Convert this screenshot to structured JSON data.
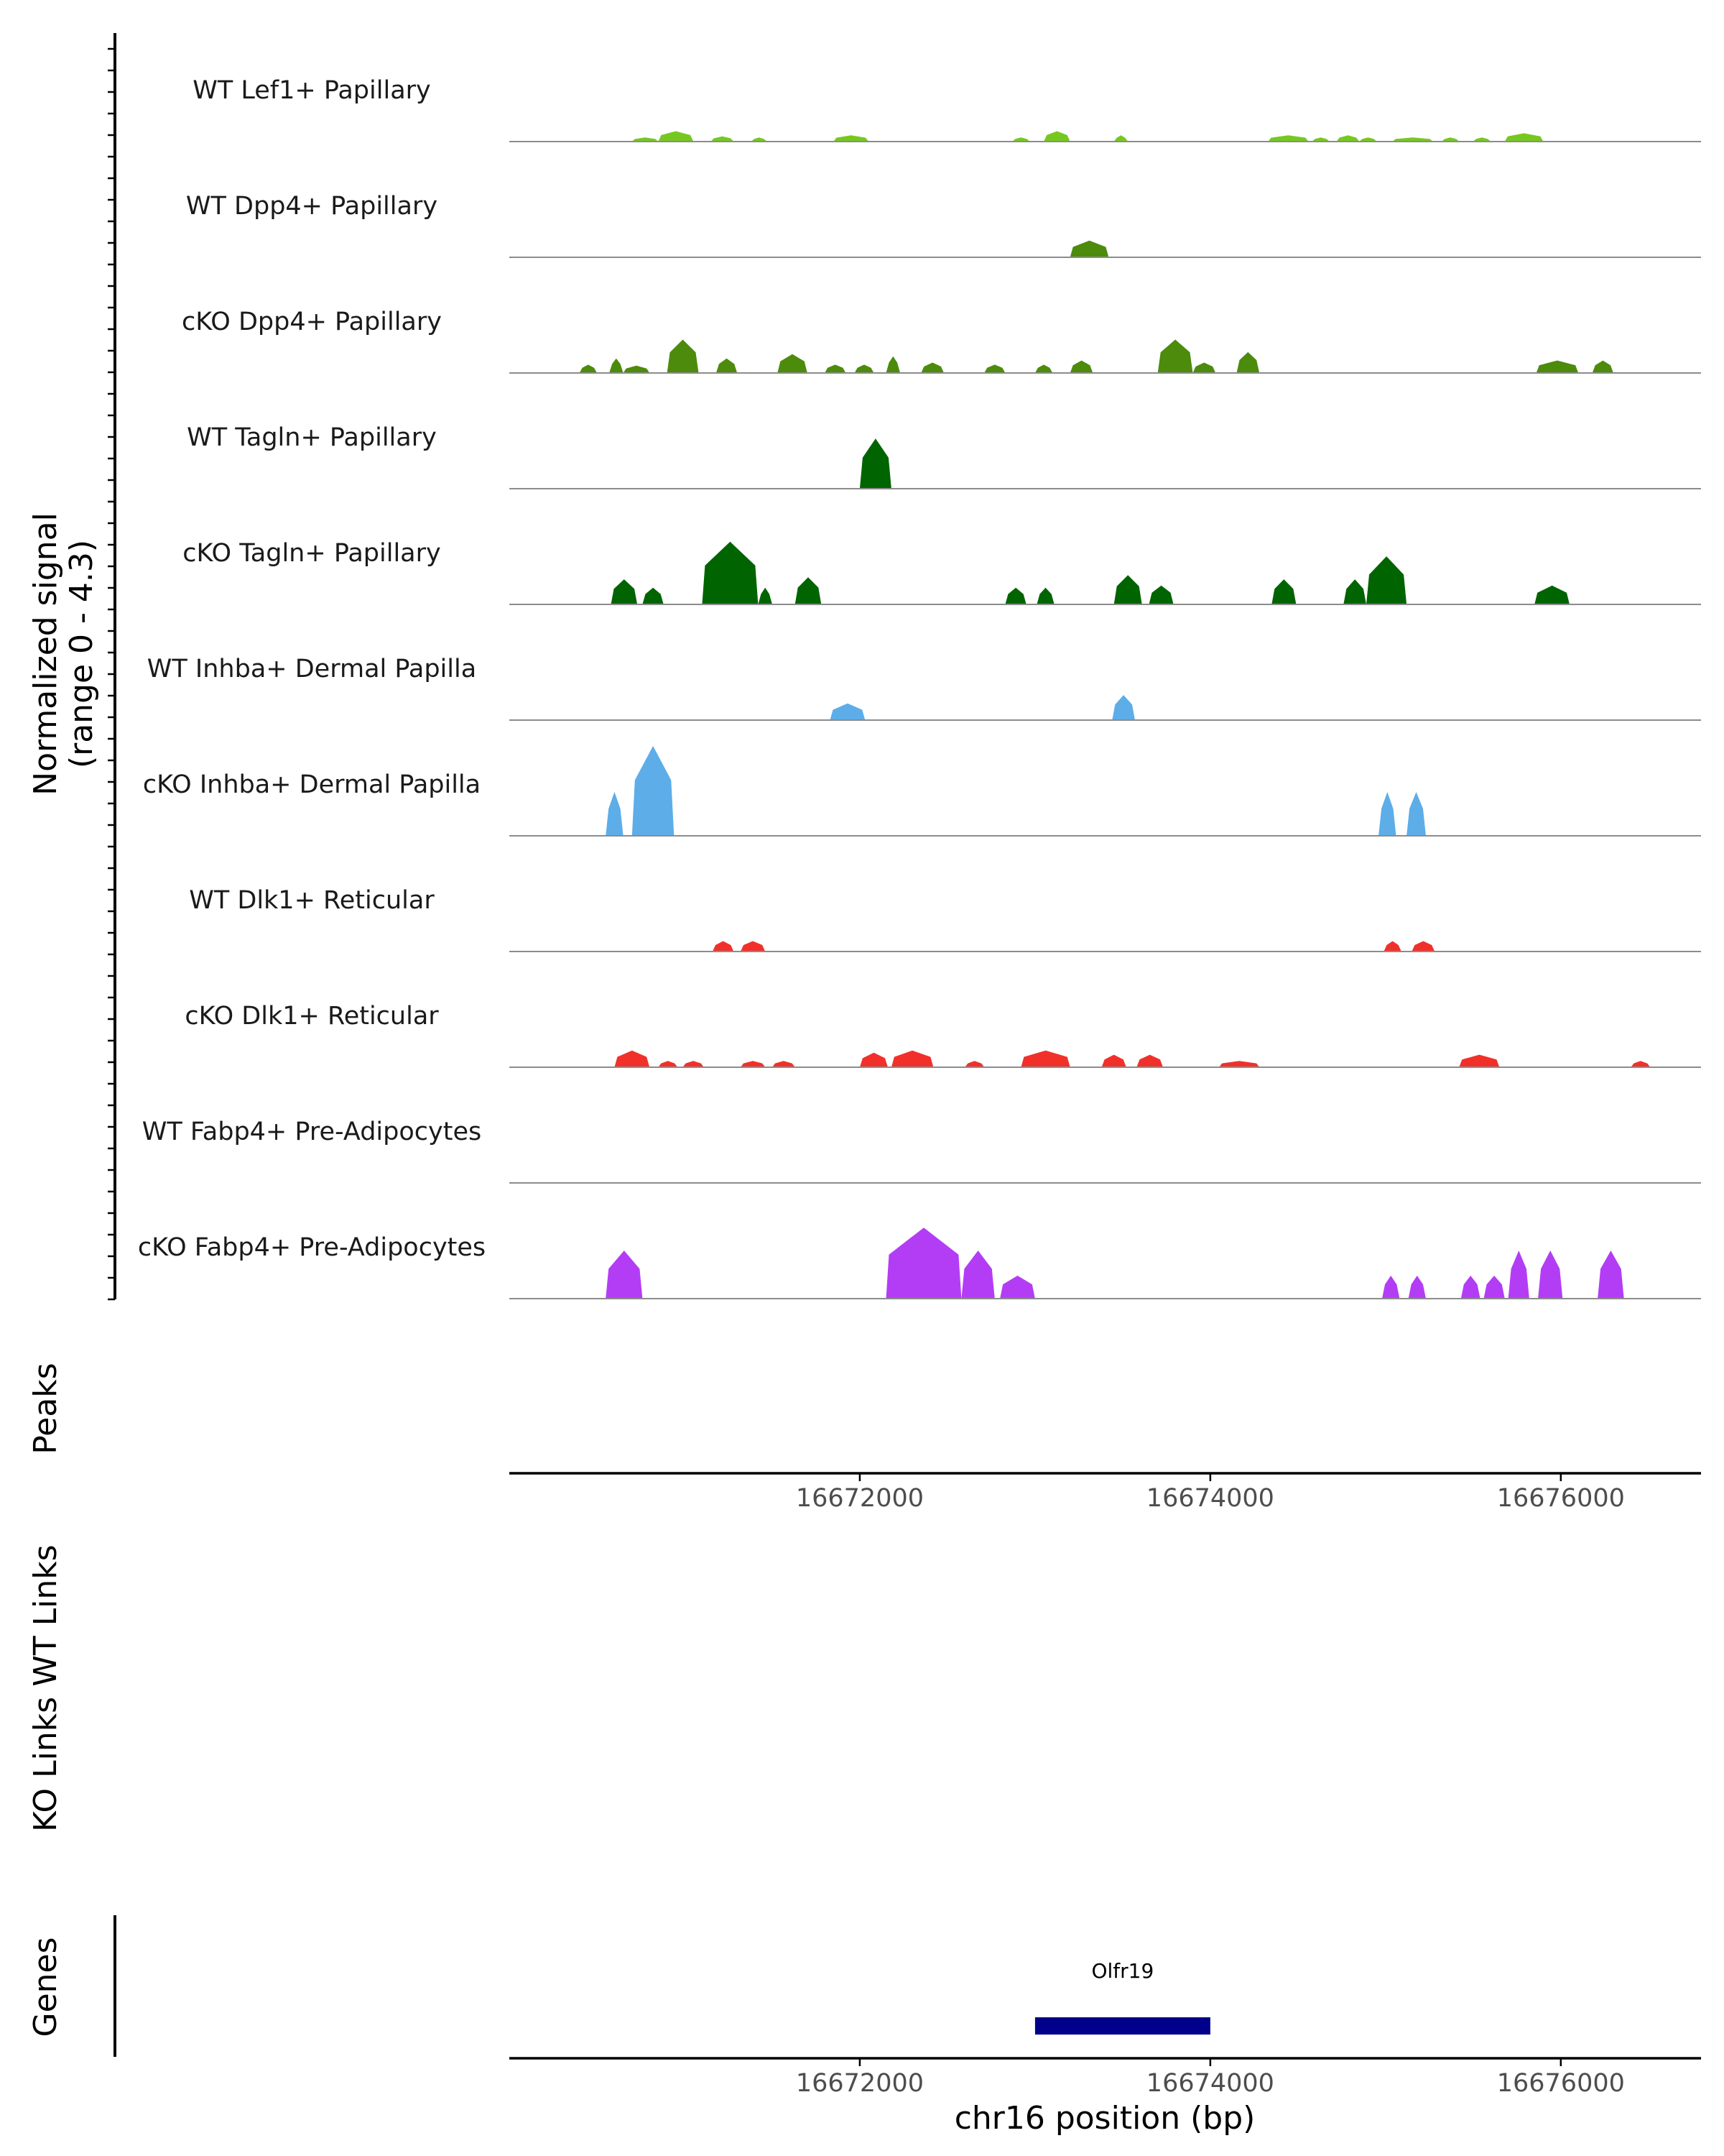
{
  "chart_data": {
    "type": "area",
    "title": "",
    "region": {
      "chrom": "chr16",
      "start": 16670000,
      "end": 16676800
    },
    "signal_axis": {
      "label_line1": "Normalized signal",
      "label_line2": "(range 0 - 4.3)",
      "ylim": [
        0,
        4.3
      ]
    },
    "tracks": [
      {
        "name": "WT Lef1+ Papillary",
        "color": "#76C81F",
        "peaks": [
          [
            16670700,
            16670850,
            0.2
          ],
          [
            16670850,
            16671050,
            0.5
          ],
          [
            16671150,
            16671280,
            0.25
          ],
          [
            16671380,
            16671470,
            0.2
          ],
          [
            16671850,
            16672050,
            0.3
          ],
          [
            16672870,
            16672970,
            0.2
          ],
          [
            16673050,
            16673200,
            0.5
          ],
          [
            16673450,
            16673530,
            0.3
          ],
          [
            16674330,
            16674560,
            0.3
          ],
          [
            16674580,
            16674680,
            0.2
          ],
          [
            16674720,
            16674850,
            0.3
          ],
          [
            16674850,
            16674950,
            0.2
          ],
          [
            16675040,
            16675270,
            0.2
          ],
          [
            16675320,
            16675420,
            0.2
          ],
          [
            16675500,
            16675600,
            0.2
          ],
          [
            16675680,
            16675900,
            0.4
          ]
        ]
      },
      {
        "name": "WT Dpp4+ Papillary",
        "color": "#4C8B0C",
        "peaks": [
          [
            16673200,
            16673420,
            0.8
          ]
        ]
      },
      {
        "name": "cKO Dpp4+ Papillary",
        "color": "#4C8B0C",
        "peaks": [
          [
            16670400,
            16670500,
            0.4
          ],
          [
            16670570,
            16670650,
            0.7
          ],
          [
            16670650,
            16670800,
            0.35
          ],
          [
            16670900,
            16671080,
            1.6
          ],
          [
            16671180,
            16671300,
            0.7
          ],
          [
            16671530,
            16671700,
            0.9
          ],
          [
            16671800,
            16671920,
            0.4
          ],
          [
            16671970,
            16672080,
            0.4
          ],
          [
            16672150,
            16672230,
            0.8
          ],
          [
            16672350,
            16672480,
            0.5
          ],
          [
            16672710,
            16672830,
            0.4
          ],
          [
            16673000,
            16673100,
            0.4
          ],
          [
            16673200,
            16673330,
            0.6
          ],
          [
            16673700,
            16673900,
            1.6
          ],
          [
            16673900,
            16674030,
            0.5
          ],
          [
            16674150,
            16674280,
            1.0
          ],
          [
            16675860,
            16676100,
            0.6
          ],
          [
            16676180,
            16676300,
            0.6
          ]
        ]
      },
      {
        "name": "WT Tagln+ Papillary",
        "color": "#006400",
        "peaks": [
          [
            16672000,
            16672180,
            2.4
          ]
        ]
      },
      {
        "name": "cKO Tagln+ Papillary",
        "color": "#006400",
        "peaks": [
          [
            16670580,
            16670730,
            1.2
          ],
          [
            16670760,
            16670880,
            0.8
          ],
          [
            16671100,
            16671420,
            3.0
          ],
          [
            16671420,
            16671500,
            0.8
          ],
          [
            16671630,
            16671780,
            1.3
          ],
          [
            16672830,
            16672950,
            0.8
          ],
          [
            16673010,
            16673110,
            0.8
          ],
          [
            16673450,
            16673610,
            1.4
          ],
          [
            16673650,
            16673790,
            0.9
          ],
          [
            16674350,
            16674490,
            1.2
          ],
          [
            16674760,
            16674890,
            1.2
          ],
          [
            16674890,
            16675120,
            2.3
          ],
          [
            16675850,
            16676050,
            0.9
          ]
        ]
      },
      {
        "name": "WT Inhba+ Dermal Papilla",
        "color": "#5DADE9",
        "peaks": [
          [
            16671830,
            16672030,
            0.8
          ],
          [
            16673440,
            16673570,
            1.2
          ]
        ]
      },
      {
        "name": "cKO Inhba+ Dermal Papilla",
        "color": "#5DADE9",
        "peaks": [
          [
            16670550,
            16670650,
            2.1
          ],
          [
            16670700,
            16670940,
            4.3
          ],
          [
            16674960,
            16675060,
            2.1
          ],
          [
            16675120,
            16675230,
            2.1
          ]
        ]
      },
      {
        "name": "WT Dlk1+ Reticular",
        "color": "#F2302A",
        "peaks": [
          [
            16671160,
            16671280,
            0.5
          ],
          [
            16671320,
            16671460,
            0.5
          ],
          [
            16674990,
            16675090,
            0.5
          ],
          [
            16675150,
            16675280,
            0.5
          ]
        ]
      },
      {
        "name": "cKO Dlk1+ Reticular",
        "color": "#F2302A",
        "peaks": [
          [
            16670600,
            16670800,
            0.8
          ],
          [
            16670850,
            16670960,
            0.3
          ],
          [
            16670990,
            16671110,
            0.3
          ],
          [
            16671320,
            16671460,
            0.3
          ],
          [
            16671500,
            16671630,
            0.3
          ],
          [
            16672000,
            16672160,
            0.7
          ],
          [
            16672180,
            16672420,
            0.8
          ],
          [
            16672600,
            16672710,
            0.3
          ],
          [
            16672920,
            16673200,
            0.8
          ],
          [
            16673380,
            16673520,
            0.6
          ],
          [
            16673580,
            16673730,
            0.6
          ],
          [
            16674050,
            16674280,
            0.3
          ],
          [
            16675420,
            16675650,
            0.6
          ],
          [
            16676400,
            16676510,
            0.3
          ]
        ]
      },
      {
        "name": "WT Fabp4+ Pre-Adipocytes",
        "color": "#B33DF5",
        "peaks": []
      },
      {
        "name": "cKO Fabp4+ Pre-Adipocytes",
        "color": "#B33DF5",
        "peaks": [
          [
            16670550,
            16670760,
            2.3
          ],
          [
            16672150,
            16672580,
            3.4
          ],
          [
            16672580,
            16672770,
            2.3
          ],
          [
            16672800,
            16673000,
            1.1
          ],
          [
            16674980,
            16675080,
            1.1
          ],
          [
            16675130,
            16675230,
            1.1
          ],
          [
            16675430,
            16675540,
            1.1
          ],
          [
            16675560,
            16675680,
            1.1
          ],
          [
            16675700,
            16675820,
            2.3
          ],
          [
            16675870,
            16676010,
            2.3
          ],
          [
            16676210,
            16676360,
            2.3
          ]
        ]
      }
    ],
    "peaks_track": {
      "label": "Peaks"
    },
    "x_axis_ticks": [
      "16672000",
      "16674000",
      "16676000"
    ],
    "tick_values": [
      16672000,
      16674000,
      16676000
    ],
    "xlabel": "chr16 position (bp)",
    "wt_links": {
      "label": "WT Links"
    },
    "ko_links": {
      "label": "KO Links"
    },
    "genes": {
      "label": "Genes",
      "items": [
        {
          "name": "Olfr19",
          "start": 16673000,
          "end": 16674000,
          "color": "#00008B"
        }
      ]
    }
  }
}
